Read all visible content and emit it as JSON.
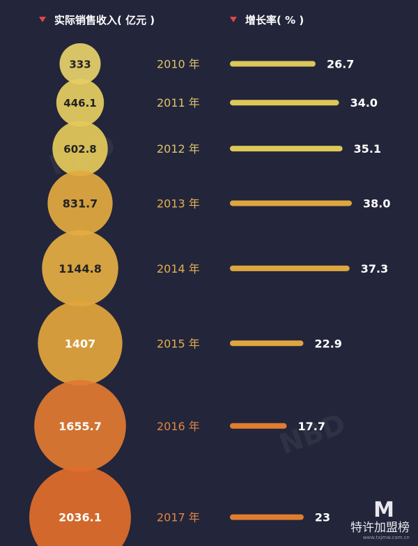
{
  "header": {
    "left_label": "实际销售收入( 亿元 )",
    "right_label": "增长率( % )"
  },
  "chart_data": {
    "type": "bubble-bar",
    "categories": [
      "2010 年",
      "2011 年",
      "2012 年",
      "2013 年",
      "2014 年",
      "2015 年",
      "2016 年",
      "2017 年"
    ],
    "series": [
      {
        "name": "实际销售收入( 亿元 )",
        "values": [
          333,
          446.1,
          602.8,
          831.7,
          1144.8,
          1407,
          1655.7,
          2036.1
        ],
        "labels": [
          "333",
          "446.1",
          "602.8",
          "831.7",
          "1144.8",
          "1407",
          "1655.7",
          "2036.1"
        ]
      },
      {
        "name": "增长率( % )",
        "values": [
          26.7,
          34.0,
          35.1,
          38.0,
          37.3,
          22.9,
          17.7,
          23
        ],
        "labels": [
          "26.7",
          "34.0",
          "35.1",
          "38.0",
          "37.3",
          "22.9",
          "17.7",
          "23"
        ]
      }
    ],
    "colors": [
      "#e6d06a",
      "#e5cd62",
      "#e4c95a",
      "#e2aa3f",
      "#e3ad42",
      "#e2a53c",
      "#e07a32",
      "#e06e2a"
    ],
    "bar_colors": [
      "#dcc858",
      "#dcc858",
      "#dcc858",
      "#dea640",
      "#dea640",
      "#dea640",
      "#e07c30",
      "#e07c30"
    ],
    "year_colors": [
      "#dcc46a",
      "#dcc46a",
      "#dcc46a",
      "#e3b04e",
      "#e3b04e",
      "#e3b04e",
      "#e08645",
      "#e08645"
    ],
    "value_label_color": "#ffffff",
    "bubble_text_color": "#222222"
  },
  "watermark": {
    "logo": "M",
    "name": "特许加盟榜",
    "url": "www.txjmw.com.cn",
    "nbd": "NBD"
  }
}
